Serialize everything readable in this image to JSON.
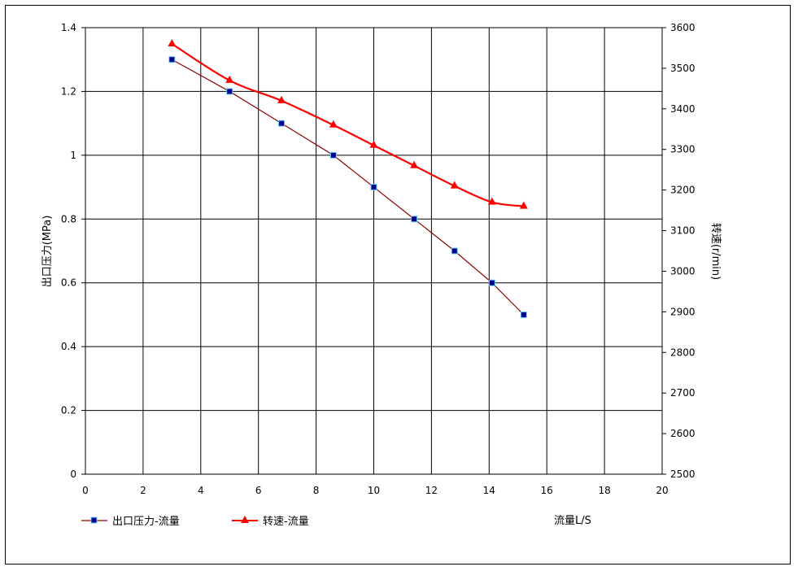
{
  "chart_data": {
    "type": "line",
    "x_ticks": [
      "0",
      "2",
      "4",
      "6",
      "8",
      "10",
      "12",
      "14",
      "16",
      "18",
      "20"
    ],
    "xlim": [
      0,
      20
    ],
    "x_unit_label": "流量L/S",
    "y_left": {
      "label": "出口压力(MPa)",
      "ylim": [
        0,
        1.4
      ],
      "ticks": [
        "0",
        "0.2",
        "0.4",
        "0.6",
        "0.8",
        "1",
        "1.2",
        "1.4"
      ]
    },
    "y_right": {
      "label": "转速(r/min)",
      "ylim": [
        2500,
        3600
      ],
      "ticks": [
        "2500",
        "2600",
        "2700",
        "2800",
        "2900",
        "3000",
        "3100",
        "3200",
        "3300",
        "3400",
        "3500",
        "3600"
      ]
    },
    "grid": true,
    "legend_position": "bottom-left",
    "series": [
      {
        "name": "出口压力-流量",
        "axis": "left",
        "color": "#8b0000",
        "marker": "square",
        "marker_color": "#00008b",
        "x": [
          3.0,
          5.0,
          6.8,
          8.6,
          10.0,
          11.4,
          12.8,
          14.1,
          15.2
        ],
        "y": [
          1.3,
          1.2,
          1.1,
          1.0,
          0.9,
          0.8,
          0.7,
          0.6,
          0.5
        ]
      },
      {
        "name": "转速-流量",
        "axis": "right",
        "color": "#ff0000",
        "marker": "triangle",
        "marker_color": "#ff0000",
        "x": [
          3.0,
          5.0,
          6.8,
          8.6,
          10.0,
          11.4,
          12.8,
          14.1,
          15.2
        ],
        "y": [
          3560,
          3470,
          3420,
          3360,
          3310,
          3260,
          3210,
          3170,
          3160
        ]
      }
    ]
  }
}
